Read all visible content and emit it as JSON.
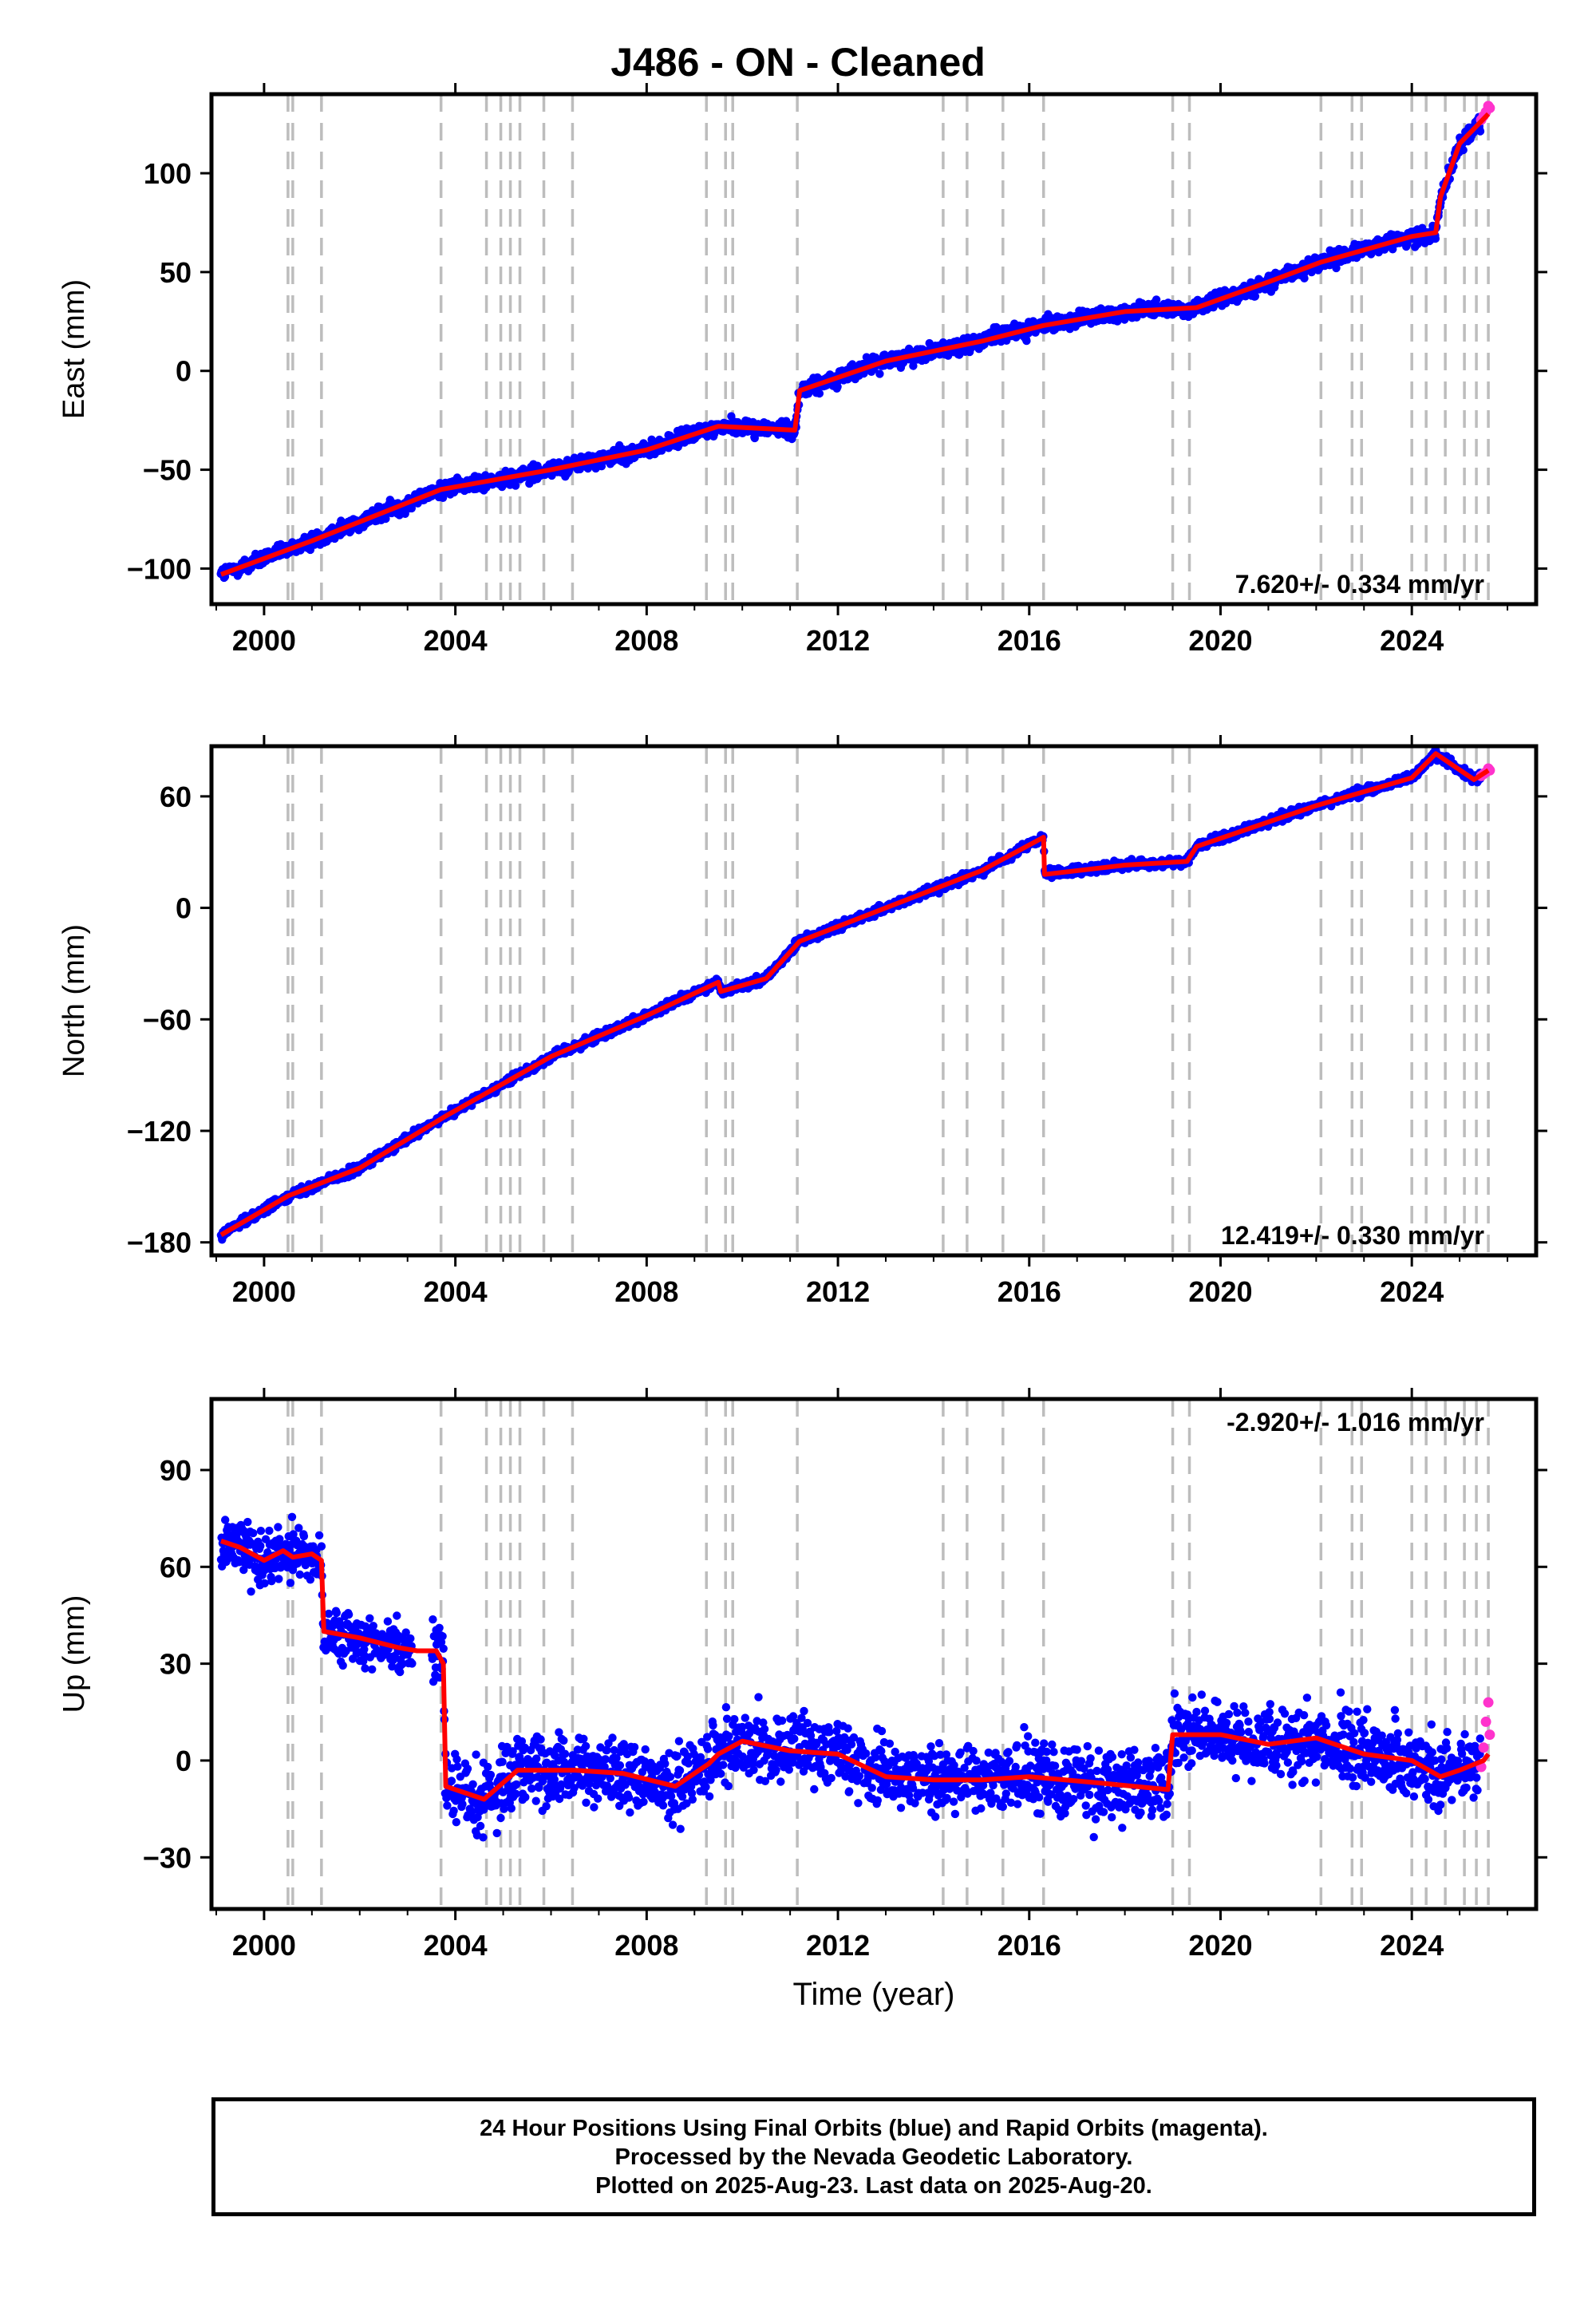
{
  "page_title": "J486  - ON - Cleaned",
  "colors": {
    "final_orbits": "#0000ff",
    "rapid_orbits": "#ff33cc",
    "model": "#ff0000",
    "event_lines": "#bdbdbd",
    "frame": "#000000"
  },
  "footer": {
    "line1": "24 Hour Positions Using Final Orbits (blue) and Rapid Orbits (magenta).",
    "line2": "Processed by the Nevada Geodetic Laboratory.",
    "line3": "Plotted on 2025-Aug-23. Last data on 2025-Aug-20."
  },
  "chart_data": [
    {
      "type": "scatter",
      "ylabel": "East (mm)",
      "xlabel": "",
      "xlim": [
        1998.9,
        2026.6
      ],
      "ylim": [
        -118,
        140
      ],
      "x_ticks": [
        2000,
        2004,
        2008,
        2012,
        2016,
        2020,
        2024
      ],
      "x_tick_labels": [
        "2000",
        "2004",
        "2008",
        "2012",
        "2016",
        "2020",
        "2024"
      ],
      "y_ticks": [
        -100,
        -50,
        0,
        50,
        100
      ],
      "y_tick_labels": [
        "−100",
        "−50",
        "0",
        "50",
        "100"
      ],
      "rate_label": "7.620+/- 0.334 mm/yr",
      "rate_position": "bottom-right",
      "grid": false,
      "series": [
        {
          "role": "final_orbits_daily",
          "x": [
            1999.1,
            2001.0,
            2003.7,
            2006.0,
            2008.0,
            2009.5,
            2011.1,
            2011.2,
            2013.0,
            2015.0,
            2016.3,
            2018.0,
            2019.5,
            2021.0,
            2022.1,
            2024.0,
            2024.5,
            2024.6,
            2025.0,
            2025.6
          ],
          "y": [
            -103,
            -86,
            -60,
            -50,
            -40,
            -28,
            -30,
            -10,
            5,
            15,
            23,
            30,
            32,
            45,
            55,
            68,
            70,
            88,
            115,
            130
          ],
          "scatter_mm": 5
        },
        {
          "role": "rapid_orbits_daily",
          "x": [
            2025.45,
            2025.5,
            2025.55,
            2025.6,
            2025.63
          ],
          "y": [
            127,
            129,
            131,
            134,
            133
          ],
          "scatter_mm": 1.5
        },
        {
          "role": "model",
          "x": [
            1999.1,
            2001.0,
            2003.7,
            2006.0,
            2008.0,
            2009.5,
            2011.1,
            2011.2,
            2013.0,
            2015.0,
            2016.3,
            2018.0,
            2019.5,
            2021.0,
            2022.1,
            2024.0,
            2024.5,
            2024.6,
            2025.0,
            2025.6
          ],
          "y": [
            -103,
            -86,
            -60,
            -50,
            -40,
            -28,
            -30,
            -10,
            5,
            15,
            23,
            30,
            32,
            45,
            55,
            68,
            70,
            88,
            115,
            130
          ]
        }
      ]
    },
    {
      "type": "scatter",
      "ylabel": "North (mm)",
      "xlabel": "",
      "xlim": [
        1998.9,
        2026.6
      ],
      "ylim": [
        -187,
        87
      ],
      "x_ticks": [
        2000,
        2004,
        2008,
        2012,
        2016,
        2020,
        2024
      ],
      "x_tick_labels": [
        "2000",
        "2004",
        "2008",
        "2012",
        "2016",
        "2020",
        "2024"
      ],
      "y_ticks": [
        -180,
        -120,
        -60,
        0,
        60
      ],
      "y_tick_labels": [
        "−180",
        "−120",
        "−60",
        "0",
        "60"
      ],
      "rate_label": "12.419+/- 0.330 mm/yr",
      "rate_position": "bottom-right",
      "grid": false,
      "series": [
        {
          "role": "final_orbits_daily",
          "x": [
            1999.1,
            2000.5,
            2002.0,
            2003.8,
            2006.0,
            2008.0,
            2009.5,
            2009.55,
            2010.5,
            2011.2,
            2013.0,
            2015.0,
            2016.3,
            2016.32,
            2018.0,
            2019.3,
            2019.5,
            2022.0,
            2024.0,
            2024.5,
            2025.3,
            2025.6
          ],
          "y": [
            -176,
            -155,
            -140,
            -112,
            -80,
            -58,
            -40,
            -45,
            -38,
            -18,
            0,
            20,
            38,
            18,
            23,
            25,
            33,
            55,
            70,
            83,
            69,
            74
          ],
          "scatter_mm": 3
        },
        {
          "role": "rapid_orbits_daily",
          "x": [
            2025.45,
            2025.5,
            2025.55,
            2025.6,
            2025.63
          ],
          "y": [
            71,
            72,
            73,
            75,
            74
          ],
          "scatter_mm": 1.5
        },
        {
          "role": "model",
          "x": [
            1999.1,
            2000.5,
            2002.0,
            2003.8,
            2006.0,
            2008.0,
            2009.5,
            2009.55,
            2010.5,
            2011.2,
            2013.0,
            2015.0,
            2016.3,
            2016.32,
            2018.0,
            2019.3,
            2019.5,
            2022.0,
            2024.0,
            2024.5,
            2025.3,
            2025.6
          ],
          "y": [
            -176,
            -155,
            -140,
            -112,
            -80,
            -58,
            -40,
            -45,
            -38,
            -18,
            0,
            20,
            38,
            18,
            23,
            25,
            33,
            55,
            70,
            83,
            69,
            74
          ]
        }
      ]
    },
    {
      "type": "scatter",
      "ylabel": "Up (mm)",
      "xlabel": "Time (year)",
      "xlim": [
        1998.9,
        2026.6
      ],
      "ylim": [
        -46,
        112
      ],
      "x_ticks": [
        2000,
        2004,
        2008,
        2012,
        2016,
        2020,
        2024
      ],
      "x_tick_labels": [
        "2000",
        "2004",
        "2008",
        "2012",
        "2016",
        "2020",
        "2024"
      ],
      "y_ticks": [
        -30,
        0,
        30,
        60,
        90
      ],
      "y_tick_labels": [
        "−30",
        "0",
        "30",
        "60",
        "90"
      ],
      "rate_label": "-2.920+/- 1.016 mm/yr",
      "rate_position": "top-right",
      "grid": false,
      "data_gap": [
        2003.1,
        2003.5
      ],
      "series": [
        {
          "role": "final_orbits_daily",
          "x": [
            1999.1,
            1999.5,
            2000.0,
            2000.4,
            2000.6,
            2001.0,
            2001.2,
            2001.25,
            2002.0,
            2002.8,
            2003.2,
            2003.6,
            2003.75,
            2003.8,
            2004.6,
            2005.3,
            2006.5,
            2007.5,
            2008.6,
            2009.3,
            2009.5,
            2010.0,
            2011.0,
            2012.0,
            2013.0,
            2014.0,
            2015.0,
            2016.0,
            2017.5,
            2018.9,
            2019.0,
            2020.0,
            2021.0,
            2022.0,
            2023.0,
            2024.0,
            2024.6,
            2025.0,
            2025.5,
            2025.6
          ],
          "y": [
            68,
            66,
            62,
            65,
            63,
            64,
            62,
            40,
            38,
            35,
            34,
            34,
            30,
            -8,
            -12,
            -3,
            -3,
            -4,
            -8,
            -1,
            2,
            6,
            3,
            2,
            -5,
            -6,
            -6,
            -5,
            -7,
            -9,
            8,
            8,
            5,
            7,
            2,
            0,
            -5,
            -3,
            0,
            2
          ],
          "scatter_mm": 14
        },
        {
          "role": "rapid_orbits_daily",
          "x": [
            2025.45,
            2025.5,
            2025.55,
            2025.6,
            2025.63
          ],
          "y": [
            -2,
            4,
            12,
            18,
            8
          ],
          "scatter_mm": 6
        },
        {
          "role": "model",
          "x": [
            1999.1,
            1999.5,
            2000.0,
            2000.4,
            2000.6,
            2001.0,
            2001.2,
            2001.25,
            2002.0,
            2002.8,
            2003.2,
            2003.6,
            2003.75,
            2003.8,
            2004.6,
            2005.3,
            2006.5,
            2007.5,
            2008.6,
            2009.3,
            2009.5,
            2010.0,
            2011.0,
            2012.0,
            2013.0,
            2014.0,
            2015.0,
            2016.0,
            2017.5,
            2018.9,
            2019.0,
            2020.0,
            2021.0,
            2022.0,
            2023.0,
            2024.0,
            2024.6,
            2025.0,
            2025.5,
            2025.6
          ],
          "y": [
            68,
            66,
            62,
            65,
            63,
            64,
            62,
            40,
            38,
            35,
            34,
            34,
            30,
            -8,
            -12,
            -3,
            -3,
            -4,
            -8,
            -1,
            2,
            6,
            3,
            2,
            -5,
            -6,
            -6,
            -5,
            -7,
            -9,
            8,
            8,
            5,
            7,
            2,
            0,
            -5,
            -3,
            0,
            2
          ]
        }
      ]
    }
  ],
  "event_lines": [
    2000.5,
    2000.6,
    2001.2,
    2003.7,
    2004.65,
    2004.95,
    2005.15,
    2005.35,
    2005.85,
    2006.45,
    2009.25,
    2009.65,
    2009.8,
    2011.15,
    2014.2,
    2014.7,
    2015.45,
    2016.3,
    2019.0,
    2019.35,
    2022.1,
    2022.75,
    2022.95,
    2024.0,
    2024.3,
    2024.7,
    2025.1,
    2025.35,
    2025.6
  ]
}
